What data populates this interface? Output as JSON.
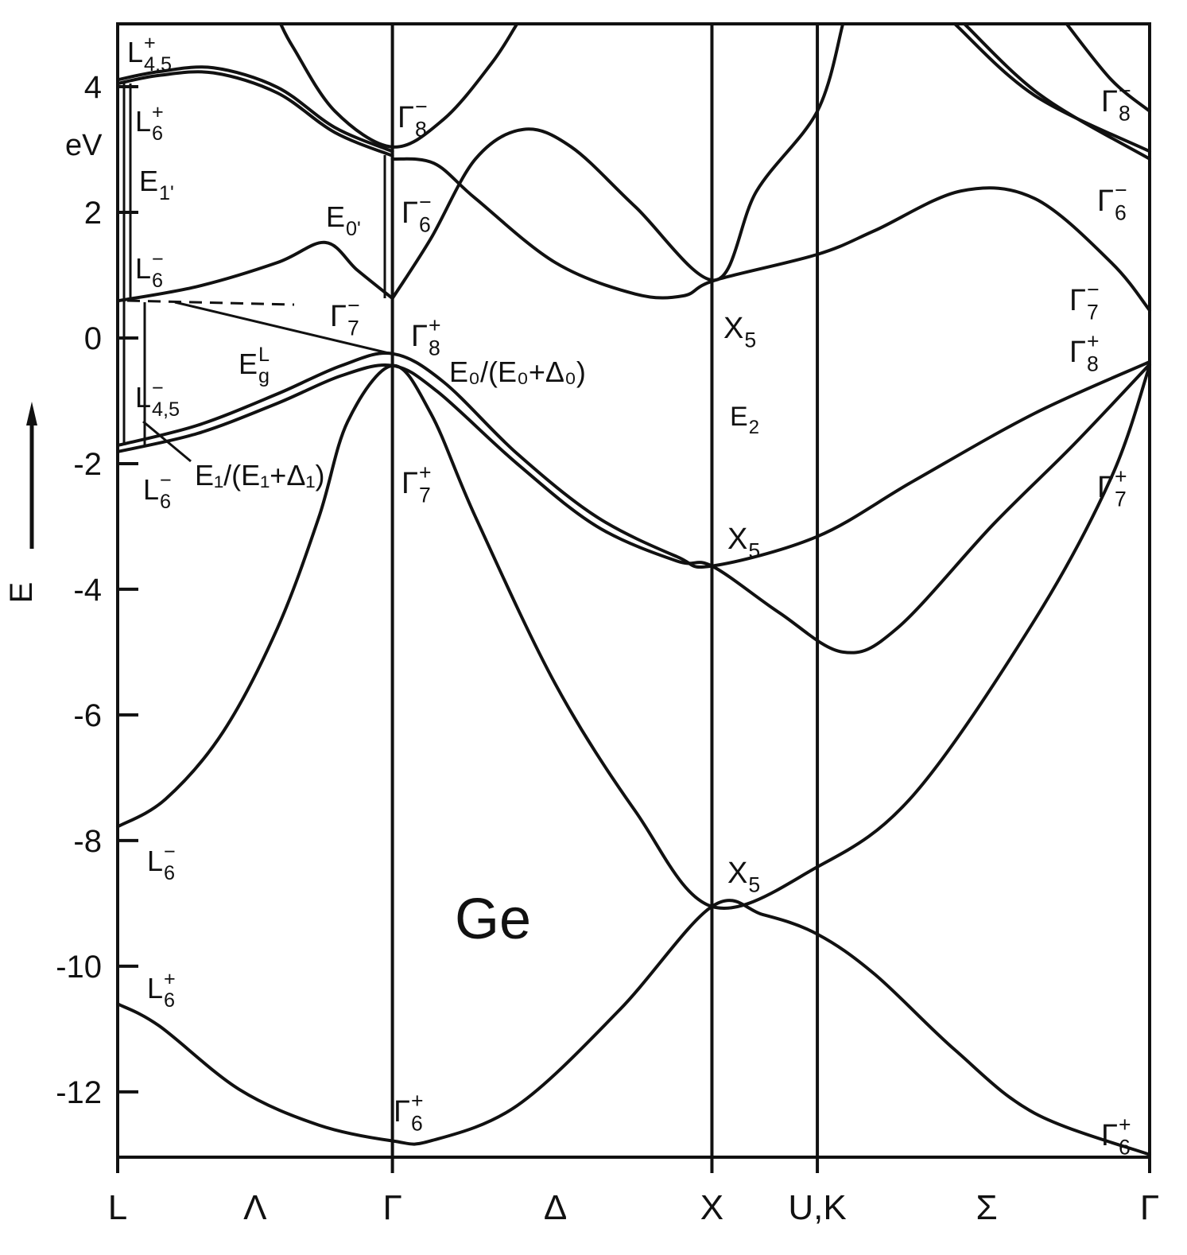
{
  "chart_data": {
    "type": "line",
    "color": "#111111",
    "xlim": [
      0,
      3.23
    ],
    "ylim": [
      -13.04,
      5
    ],
    "yticks": [
      4,
      2,
      0,
      -2,
      -4,
      -6,
      -8,
      -10,
      -12
    ],
    "xticks": [
      {
        "value": 0,
        "label": "L"
      },
      {
        "value": 0.86,
        "label": "Γ"
      },
      {
        "value": 1.86,
        "label": "X"
      },
      {
        "value": 2.19,
        "label": "U,K"
      },
      {
        "value": 3.23,
        "label": "Γ"
      }
    ],
    "branch_labels": [
      {
        "value": 0.43,
        "label": "Λ"
      },
      {
        "value": 1.37,
        "label": "Δ"
      },
      {
        "value": 2.72,
        "label": "Σ"
      }
    ],
    "y_unit": "eV",
    "y_label": "E",
    "series": [
      {
        "x": [
          0,
          0.13,
          0.38,
          0.63,
          0.86,
          0.98,
          1.25,
          1.57,
          1.86,
          2.02,
          2.19,
          2.37,
          2.62,
          2.87,
          3.23
        ],
        "values": [
          -10.6,
          -10.95,
          -11.96,
          -12.53,
          -12.78,
          -12.78,
          -12.22,
          -10.7,
          -9.05,
          -9.18,
          -9.49,
          -10.13,
          -11.33,
          -12.34,
          -13.0
        ]
      },
      {
        "x": [
          0,
          0.15,
          0.33,
          0.5,
          0.63,
          0.72,
          0.86,
          0.98,
          1.12,
          1.37,
          1.62,
          1.86,
          2.19,
          2.49,
          2.87,
          3.11,
          3.23
        ],
        "values": [
          -7.78,
          -7.34,
          -6.27,
          -4.62,
          -2.85,
          -1.33,
          -0.44,
          -1.2,
          -2.85,
          -5.51,
          -7.53,
          -9.05,
          -8.42,
          -7.28,
          -4.49,
          -2.22,
          -0.44
        ]
      },
      {
        "x": [
          0,
          0.25,
          0.5,
          0.7,
          0.86,
          1.02,
          1.25,
          1.5,
          1.75,
          1.86,
          2.19,
          2.49,
          2.87,
          3.23
        ],
        "values": [
          -1.71,
          -1.39,
          -0.89,
          -0.44,
          -0.25,
          -0.7,
          -1.84,
          -2.85,
          -3.48,
          -3.63,
          -3.16,
          -2.28,
          -1.2,
          -0.38
        ]
      },
      {
        "x": [
          0,
          0.25,
          0.5,
          0.7,
          0.86,
          1.0,
          1.25,
          1.5,
          1.75,
          1.86,
          2.07,
          2.27,
          2.44,
          2.74,
          2.99,
          3.23
        ],
        "values": [
          -1.81,
          -1.52,
          -1.04,
          -0.6,
          -0.44,
          -0.85,
          -2.0,
          -3.0,
          -3.55,
          -3.63,
          -4.37,
          -5.0,
          -4.62,
          -2.97,
          -1.71,
          -0.42
        ]
      },
      {
        "x": [
          0,
          0.25,
          0.5,
          0.65,
          0.75,
          0.86
        ],
        "values": [
          0.59,
          0.82,
          1.2,
          1.52,
          1.08,
          0.63
        ]
      },
      {
        "x": [
          0.86,
          0.98,
          1.12,
          1.27,
          1.42,
          1.62,
          1.87,
          2.0,
          2.19,
          2.27
        ],
        "values": [
          0.63,
          1.58,
          2.85,
          3.32,
          3.04,
          2.09,
          0.92,
          2.34,
          3.61,
          5.0
        ]
      },
      {
        "x": [
          0.86,
          0.99,
          1.12,
          1.37,
          1.62,
          1.77,
          1.87,
          2.19,
          2.37,
          2.64,
          2.87,
          3.11,
          3.23
        ],
        "values": [
          2.85,
          2.78,
          2.22,
          1.2,
          0.7,
          0.67,
          0.92,
          1.33,
          1.71,
          2.34,
          2.22,
          1.2,
          0.44
        ]
      },
      {
        "x": [
          0,
          0.13,
          0.3,
          0.5,
          0.68,
          0.86
        ],
        "values": [
          4.11,
          4.24,
          4.3,
          3.99,
          3.35,
          2.97
        ]
      },
      {
        "x": [
          0,
          0.13,
          0.3,
          0.5,
          0.68,
          0.86
        ],
        "values": [
          4.05,
          4.18,
          4.22,
          3.9,
          3.27,
          2.9
        ]
      },
      {
        "x": [
          0.51,
          0.55,
          0.68,
          0.86,
          1.02,
          1.17,
          1.25
        ],
        "values": [
          5.0,
          4.62,
          3.61,
          3.04,
          3.48,
          4.37,
          5.0
        ]
      },
      {
        "x": [
          2.62,
          2.87,
          3.23
        ],
        "values": [
          5.0,
          3.86,
          2.97
        ]
      },
      {
        "x": [
          2.65,
          2.89,
          3.23
        ],
        "values": [
          5.0,
          3.86,
          2.85
        ]
      },
      {
        "x": [
          2.97,
          3.11,
          3.23
        ],
        "values": [
          5.0,
          4.11,
          3.61
        ]
      }
    ],
    "annotations": [
      {
        "text": "L",
        "sup": "+",
        "sub": "4,5"
      },
      {
        "text": "L",
        "sup": "+",
        "sub": "6"
      },
      {
        "text": "E",
        "sub": "1'"
      },
      {
        "text": "E",
        "sub": "0'"
      },
      {
        "text": "L",
        "sup": "−",
        "sub": "6"
      },
      {
        "text": "Γ",
        "sup": "−",
        "sub": "8"
      },
      {
        "text": "Γ",
        "sup": "−",
        "sub": "6"
      },
      {
        "text": "Γ",
        "sup": "−",
        "sub": "7"
      },
      {
        "text": "Γ",
        "sup": "+",
        "sub": "8"
      },
      {
        "text": "E",
        "sub": "g",
        "sup": "L"
      },
      {
        "text": "E₀/(E₀+Δ₀)"
      },
      {
        "text": "L",
        "sup": "−",
        "sub": "4,5"
      },
      {
        "text": "L",
        "sup": "−",
        "sub": "6"
      },
      {
        "text": "E₁/(E₁+Δ₁)"
      },
      {
        "text": "Γ",
        "sup": "+",
        "sub": "7"
      },
      {
        "text": "X",
        "sub": "5"
      },
      {
        "text": "E",
        "sub": "2"
      },
      {
        "text": "X",
        "sub": "5"
      },
      {
        "text": "X",
        "sub": "5"
      },
      {
        "text": "Ge"
      },
      {
        "text": "L",
        "sup": "−",
        "sub": "6"
      },
      {
        "text": "L",
        "sup": "+",
        "sub": "6"
      },
      {
        "text": "Γ",
        "sup": "+",
        "sub": "6"
      },
      {
        "text": "Γ",
        "sup": "−",
        "sub": "8"
      },
      {
        "text": "Γ",
        "sup": "−",
        "sub": "6"
      },
      {
        "text": "Γ",
        "sup": "−",
        "sub": "7"
      },
      {
        "text": "Γ",
        "sup": "+",
        "sub": "8"
      },
      {
        "text": "Γ",
        "sup": "+",
        "sub": "7"
      },
      {
        "text": "Γ",
        "sup": "+",
        "sub": "6"
      }
    ]
  }
}
